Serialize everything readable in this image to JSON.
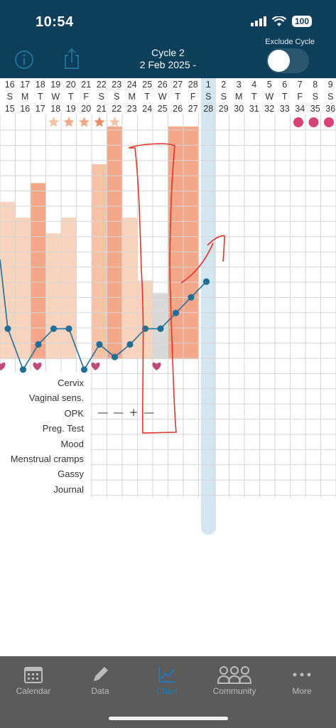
{
  "status_bar": {
    "time": "10:54",
    "battery": "100"
  },
  "header": {
    "cycle_name": "Cycle 2",
    "cycle_date": "2 Feb 2025 -",
    "exclude_label": "Exclude Cycle",
    "exclude_enabled": false
  },
  "dates": {
    "day_of_month": [
      "16",
      "17",
      "18",
      "19",
      "20",
      "21",
      "22",
      "23",
      "24",
      "25",
      "26",
      "27",
      "28",
      "1",
      "2",
      "3",
      "4",
      "5",
      "6",
      "7",
      "8",
      "9"
    ],
    "weekday": [
      "S",
      "M",
      "T",
      "W",
      "T",
      "F",
      "S",
      "S",
      "M",
      "T",
      "W",
      "T",
      "F",
      "S",
      "S",
      "M",
      "T",
      "W",
      "T",
      "F",
      "S",
      "S"
    ],
    "cycle_day": [
      "15",
      "16",
      "17",
      "18",
      "19",
      "20",
      "21",
      "22",
      "23",
      "24",
      "25",
      "26",
      "27",
      "28",
      "29",
      "30",
      "31",
      "32",
      "33",
      "34",
      "35",
      "36"
    ]
  },
  "chart_data": {
    "type": "bar",
    "bars_level": [
      0.5,
      0.45,
      0.56,
      0.4,
      0.45,
      0,
      0.62,
      0.74,
      0.45,
      0.25,
      0.21,
      0.74,
      0.74
    ],
    "bars_color": [
      "#f8d3bd",
      "#f8d3bd",
      "#f4a789",
      "#f8d3bd",
      "#f8d3bd",
      "none",
      "#f8c2a6",
      "#f4a789",
      "#f8d3bd",
      "#f8d3bd",
      "#d9d9d9",
      "#f4a789",
      "#f4a789"
    ],
    "temperature_points": [
      null,
      0.3,
      0.17,
      0.25,
      0.3,
      0.3,
      0.17,
      0.25,
      0.21,
      0.25,
      0.3,
      0.3,
      0.35,
      0.4,
      0.45
    ],
    "star_days": [
      3,
      4,
      5,
      6,
      7
    ],
    "heart_days": [
      0,
      2,
      6,
      10
    ],
    "period_dots_days": [
      19,
      20,
      21
    ]
  },
  "rows": {
    "labels": [
      "Cervix",
      "Vaginal sens.",
      "OPK",
      "Preg. Test",
      "Mood",
      "Menstrual cramps",
      "Gassy",
      "Journal"
    ],
    "opk_values": [
      "—",
      "—",
      "+",
      "—"
    ]
  },
  "tabs": [
    {
      "label": "Calendar",
      "icon": "calendar-icon"
    },
    {
      "label": "Data",
      "icon": "pencil-icon"
    },
    {
      "label": "Chart",
      "icon": "chart-icon"
    },
    {
      "label": "Community",
      "icon": "community-icon"
    },
    {
      "label": "More",
      "icon": "more-icon"
    }
  ],
  "colors": {
    "header": "#0d3e5a",
    "accent_blue": "#1f6f99",
    "heart": "#c04a7a",
    "period_dot": "#d84374",
    "annotation": "#e5332a"
  }
}
